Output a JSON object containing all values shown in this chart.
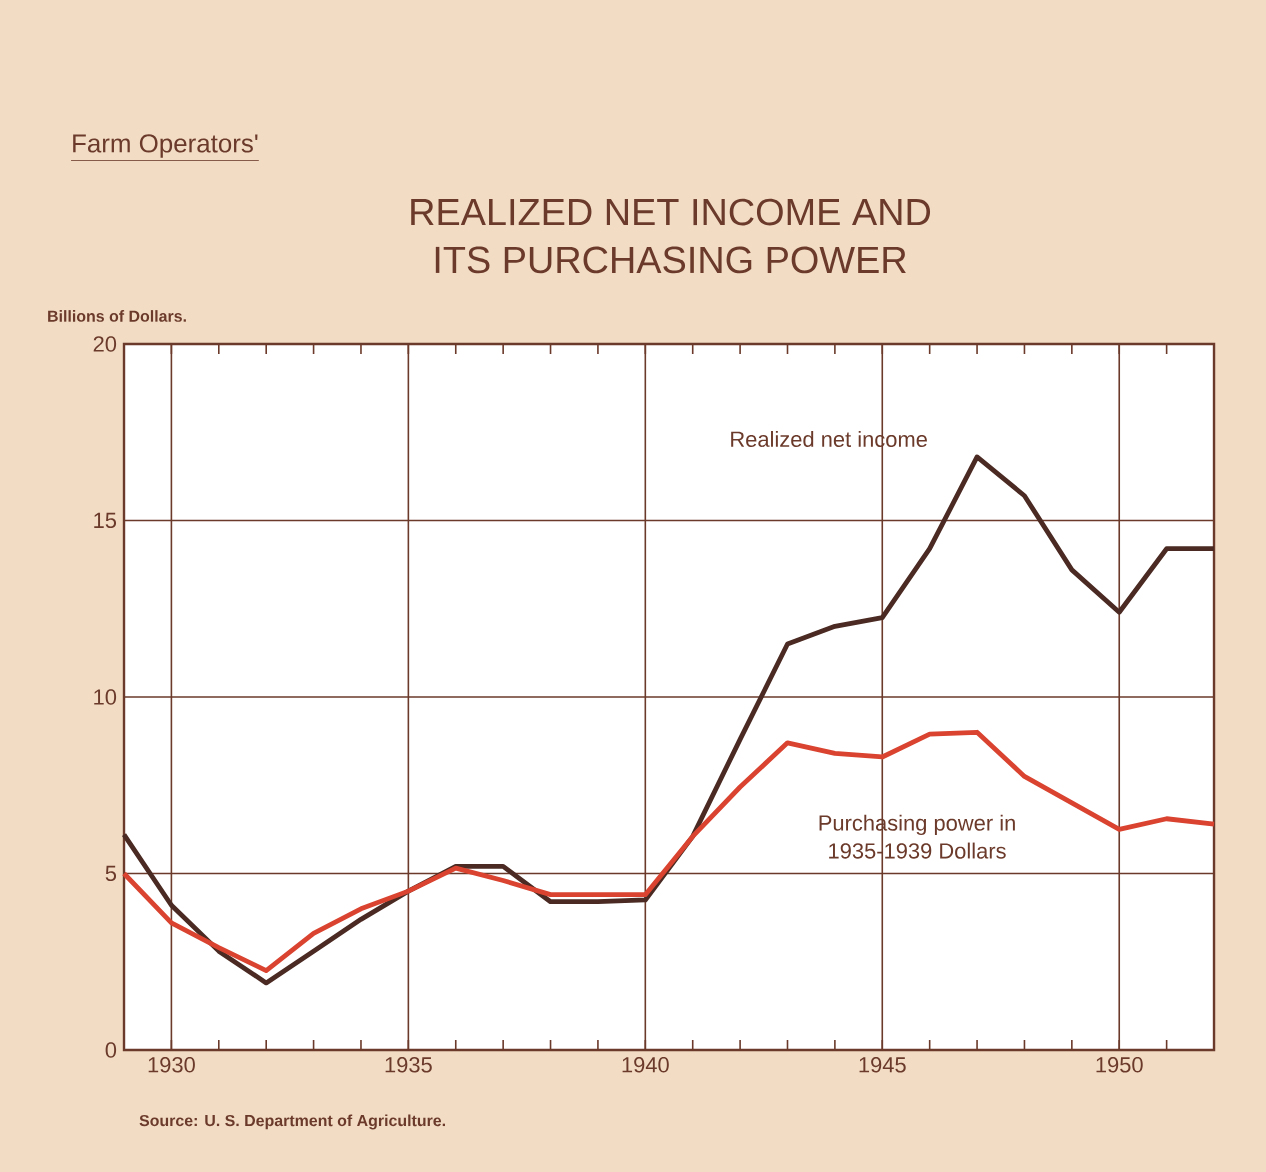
{
  "chart_data": {
    "type": "line",
    "title": "REALIZED NET INCOME AND\nITS PURCHASING POWER",
    "subtitle": "Farm Operators'",
    "ylabel": "Billions of Dollars.",
    "annotations": [
      "Source: U. S. Department of Agriculture."
    ],
    "x": [
      1929,
      1930,
      1931,
      1932,
      1933,
      1934,
      1935,
      1936,
      1937,
      1938,
      1939,
      1940,
      1941,
      1942,
      1943,
      1944,
      1945,
      1946,
      1947,
      1948,
      1949,
      1950,
      1951,
      1952
    ],
    "series": [
      {
        "name": "Realized net income",
        "color": "#4a2a22",
        "values": [
          6.1,
          4.1,
          2.8,
          1.9,
          2.8,
          3.7,
          4.5,
          5.2,
          5.2,
          4.2,
          4.2,
          4.25,
          6.05,
          8.8,
          11.5,
          12.0,
          12.25,
          14.2,
          16.8,
          15.7,
          13.6,
          12.4,
          14.2,
          14.2
        ]
      },
      {
        "name": "Purchasing power in\n1935-1939 Dollars",
        "color": "#d9432f",
        "values": [
          5.0,
          3.6,
          2.9,
          2.25,
          3.3,
          4.0,
          4.5,
          5.15,
          4.8,
          4.4,
          4.4,
          4.4,
          6.05,
          7.45,
          8.7,
          8.4,
          8.3,
          8.95,
          9.0,
          7.75,
          7.0,
          6.25,
          6.55,
          6.4
        ]
      }
    ],
    "xlim": [
      1929,
      1952
    ],
    "xticks": [
      1930,
      1935,
      1940,
      1945,
      1950
    ],
    "ylim": [
      0,
      20
    ],
    "yticks": [
      0,
      5,
      10,
      15,
      20
    ],
    "grid": true,
    "marker": "none",
    "line_style": "solid"
  }
}
